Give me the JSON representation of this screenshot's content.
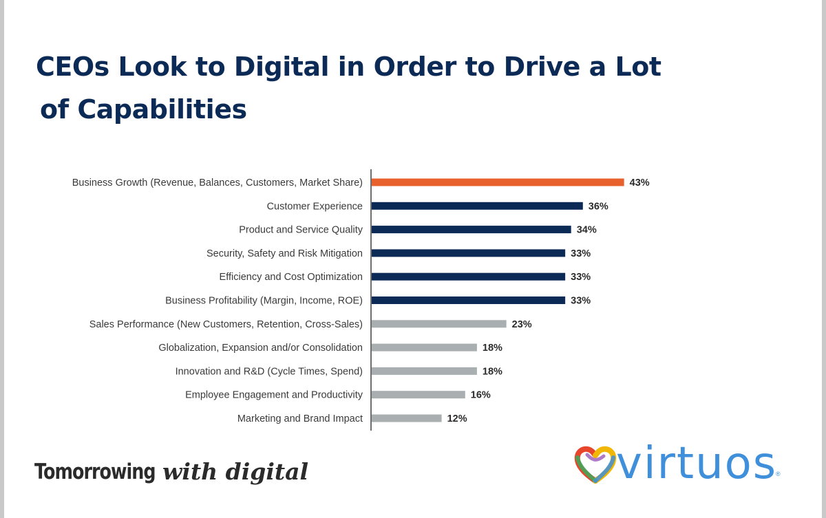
{
  "title": {
    "line1": "CEOs Look to Digital in Order to Drive a Lot",
    "line2": "of Capabilities"
  },
  "chart_data": {
    "type": "bar",
    "orientation": "horizontal",
    "categories": [
      "Business Growth (Revenue, Balances, Customers, Market Share)",
      "Customer Experience",
      "Product and Service Quality",
      "Security, Safety and Risk Mitigation",
      "Efficiency and Cost Optimization",
      "Business Profitability (Margin, Income, ROE)",
      "Sales Performance (New Customers, Retention, Cross-Sales)",
      "Globalization, Expansion and/or Consolidation",
      "Innovation and R&D (Cycle Times, Spend)",
      "Employee Engagement and Productivity",
      "Marketing and Brand Impact"
    ],
    "values": [
      43,
      36,
      34,
      33,
      33,
      33,
      23,
      18,
      18,
      16,
      12
    ],
    "value_labels": [
      "43%",
      "36%",
      "34%",
      "33%",
      "33%",
      "33%",
      "23%",
      "18%",
      "18%",
      "16%",
      "12%"
    ],
    "bar_colors": [
      "#e8612c",
      "#0c2a56",
      "#0c2a56",
      "#0c2a56",
      "#0c2a56",
      "#0c2a56",
      "#a9afb1",
      "#a9afb1",
      "#a9afb1",
      "#a9afb1",
      "#a9afb1"
    ],
    "grid": false,
    "legend": "none"
  },
  "footer": {
    "slogan_main": "Tomorrowing",
    "slogan_script": "with digital",
    "logo_text": "virtuos",
    "logo_registered": "®",
    "logo_icon": "heart-logo-icon"
  },
  "colors": {
    "title": "#0c2a56",
    "highlight": "#e8612c",
    "primary": "#0c2a56",
    "secondary": "#a9afb1",
    "logo": "#3f8fdb"
  }
}
